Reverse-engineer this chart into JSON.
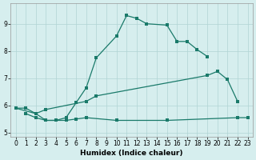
{
  "xlabel": "Humidex (Indice chaleur)",
  "bg_color": "#d6eeee",
  "grid_color": "#b0d4d4",
  "line_color": "#1a7a6a",
  "xlim": [
    -0.5,
    23.5
  ],
  "ylim": [
    4.85,
    9.75
  ],
  "xticks": [
    0,
    1,
    2,
    3,
    4,
    5,
    6,
    7,
    8,
    9,
    10,
    11,
    12,
    13,
    14,
    15,
    16,
    17,
    18,
    19,
    20,
    21,
    22,
    23
  ],
  "yticks": [
    5,
    6,
    7,
    8,
    9
  ],
  "curve1_x": [
    0,
    1,
    2,
    3,
    4,
    5,
    6,
    7,
    8,
    10,
    11,
    12,
    13,
    15,
    16,
    17,
    18,
    19
  ],
  "curve1_y": [
    5.9,
    5.9,
    5.7,
    5.45,
    5.45,
    5.55,
    6.1,
    6.65,
    7.75,
    8.55,
    9.3,
    9.2,
    9.0,
    8.95,
    8.35,
    8.35,
    8.05,
    7.8
  ],
  "curve2_x": [
    0,
    2,
    3,
    7,
    8,
    19,
    20,
    21,
    22
  ],
  "curve2_y": [
    5.9,
    5.7,
    5.85,
    6.15,
    6.35,
    7.1,
    7.25,
    6.95,
    6.15
  ],
  "curve3_x": [
    1,
    2,
    3,
    4,
    5,
    6,
    7,
    10,
    15,
    22,
    23
  ],
  "curve3_y": [
    5.7,
    5.55,
    5.45,
    5.45,
    5.45,
    5.5,
    5.55,
    5.45,
    5.45,
    5.55,
    5.55
  ]
}
